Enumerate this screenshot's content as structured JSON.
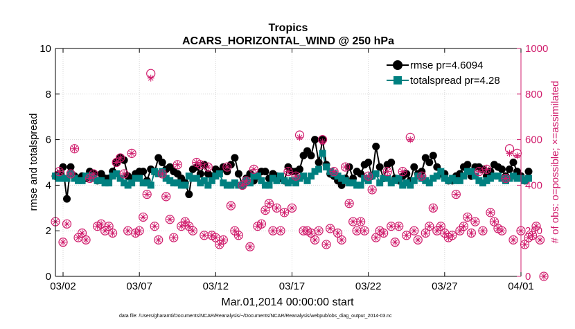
{
  "chart_data": {
    "type": "line",
    "title": "Tropics",
    "subtitle": "ACARS_HORIZONTAL_WIND @ 250 hPa",
    "xlabel": "Mar.01,2014 00:00:00 start",
    "ylabel_left": "rmse and totalspread",
    "ylabel_right": "# of obs: o=possible; ×=assimilated",
    "footnote": "data file: /Users/gharamti/Documents/NCAR/Reanalysis/~/Documents/NCAR/Reanalysis/webpub/obs_diag_output_2014-03.nc",
    "xlim": [
      "03/01 12:00",
      "04/01"
    ],
    "x_ticks": [
      "03/02",
      "03/07",
      "03/12",
      "03/17",
      "03/22",
      "03/27",
      "04/01"
    ],
    "ylim_left": [
      0,
      10
    ],
    "y_ticks_left": [
      "0",
      "2",
      "4",
      "6",
      "8",
      "10"
    ],
    "ylim_right": [
      0,
      1000
    ],
    "y_ticks_right": [
      "0",
      "200",
      "400",
      "600",
      "800",
      "1000"
    ],
    "grid": true,
    "legend_position": "top-right",
    "x_start": "2014-03-01",
    "x_step_days": 0.25,
    "series": [
      {
        "name": "rmse pr=4.6094",
        "axis": "left",
        "color": "#000000",
        "marker": "circle",
        "values": [
          4.4,
          4.5,
          4.8,
          3.4,
          4.8,
          4.4,
          4.3,
          4.4,
          4.3,
          4.6,
          4.5,
          4.2,
          4.5,
          4.3,
          4.3,
          4.6,
          5.0,
          5.2,
          5.1,
          4.4,
          4.3,
          4.5,
          4.6,
          4.6,
          4.2,
          4.7,
          4.6,
          5.2,
          5.0,
          4.7,
          4.8,
          4.6,
          4.5,
          4.3,
          4.1,
          3.6,
          4.7,
          4.8,
          4.5,
          4.9,
          4.5,
          4.4,
          4.7,
          4.6,
          4.8,
          4.6,
          4.9,
          5.2,
          4.5,
          4.0,
          4.3,
          4.5,
          4.2,
          4.4,
          4.6,
          4.6,
          4.3,
          4.5,
          4.4,
          4.3,
          4.2,
          4.8,
          4.6,
          4.6,
          4.7,
          5.3,
          5.5,
          5.3,
          6.0,
          5.0,
          6.0,
          4.9,
          4.5,
          4.4,
          4.2,
          4.0,
          4.3,
          4.8,
          4.3,
          4.6,
          4.5,
          4.9,
          5.0,
          4.4,
          5.7,
          4.8,
          4.3,
          4.9,
          5.0,
          4.3,
          4.2,
          4.4,
          4.5,
          4.2,
          4.8,
          4.5,
          4.6,
          5.2,
          5.0,
          5.3,
          4.8,
          4.5,
          4.5,
          4.2,
          4.2,
          4.4,
          4.5,
          4.8,
          4.9,
          4.4,
          4.8,
          4.8,
          4.7,
          4.4,
          4.6,
          4.9,
          4.8,
          4.7,
          4.4,
          4.7,
          5.0,
          4.6,
          4.4,
          4.2,
          4.6
        ]
      },
      {
        "name": "totalspread pr=4.28",
        "axis": "left",
        "color": "#008080",
        "marker": "square",
        "values": [
          4.4,
          4.3,
          4.3,
          4.3,
          4.5,
          4.3,
          4.2,
          4.2,
          4.4,
          4.4,
          4.3,
          4.2,
          4.2,
          4.1,
          4.1,
          4.4,
          4.5,
          4.3,
          4.1,
          4.0,
          4.1,
          4.3,
          4.3,
          4.1,
          4.1,
          4.0,
          4.6,
          4.5,
          4.6,
          4.3,
          4.2,
          4.1,
          4.1,
          4.0,
          4.0,
          4.4,
          4.3,
          4.3,
          4.1,
          4.2,
          4.0,
          4.2,
          4.4,
          4.5,
          4.1,
          4.0,
          4.0,
          4.1,
          4.0,
          4.0,
          4.2,
          4.1,
          4.4,
          4.4,
          4.2,
          4.0,
          4.0,
          4.3,
          4.2,
          4.4,
          4.2,
          4.1,
          4.2,
          4.1,
          4.3,
          4.4,
          4.2,
          4.4,
          4.6,
          4.7,
          5.4,
          4.8,
          4.6,
          4.5,
          4.4,
          4.3,
          4.2,
          4.1,
          4.1,
          4.0,
          4.0,
          4.3,
          4.2,
          4.4,
          4.5,
          4.1,
          4.3,
          4.3,
          4.1,
          4.2,
          4.3,
          4.0,
          4.1,
          4.0,
          4.2,
          4.4,
          4.3,
          4.2,
          4.1,
          4.3,
          4.4,
          4.6,
          4.3,
          4.2,
          4.3,
          4.2,
          4.2,
          4.4,
          4.6,
          4.6,
          4.4,
          4.2,
          4.1,
          4.2,
          4.3,
          4.4,
          4.4,
          4.3,
          4.2,
          4.3,
          4.4,
          4.3,
          4.3,
          4.2,
          4.3
        ]
      },
      {
        "name": "possible",
        "axis": "right",
        "color": "#d01c6c",
        "marker": "circle-open",
        "values": [
          240,
          460,
          150,
          230,
          450,
          560,
          170,
          190,
          160,
          430,
          450,
          220,
          230,
          200,
          220,
          190,
          500,
          520,
          450,
          200,
          540,
          190,
          200,
          260,
          360,
          890,
          220,
          160,
          450,
          350,
          250,
          170,
          490,
          220,
          240,
          220,
          200,
          500,
          490,
          180,
          480,
          180,
          170,
          140,
          160,
          480,
          310,
          200,
          180,
          400,
          420,
          130,
          470,
          220,
          230,
          290,
          320,
          200,
          300,
          200,
          280,
          460,
          300,
          440,
          620,
          200,
          200,
          190,
          160,
          200,
          600,
          140,
          210,
          460,
          190,
          160,
          480,
          320,
          240,
          200,
          240,
          200,
          440,
          380,
          170,
          200,
          190,
          460,
          220,
          150,
          220,
          460,
          180,
          610,
          200,
          160,
          440,
          190,
          220,
          300,
          200,
          220,
          190,
          170,
          180,
          360,
          200,
          220,
          260,
          190,
          240,
          460,
          200,
          470,
          280,
          240,
          210,
          200,
          430,
          560,
          160,
          540,
          200,
          140,
          170,
          180,
          220,
          160,
          0
        ]
      },
      {
        "name": "assimilated",
        "axis": "right",
        "color": "#d01c6c",
        "marker": "asterisk",
        "values": [
          240,
          460,
          150,
          230,
          450,
          560,
          170,
          190,
          160,
          430,
          450,
          220,
          230,
          200,
          220,
          190,
          500,
          520,
          450,
          200,
          540,
          190,
          200,
          260,
          360,
          870,
          220,
          160,
          450,
          350,
          250,
          170,
          490,
          220,
          240,
          220,
          200,
          500,
          490,
          180,
          480,
          180,
          170,
          140,
          160,
          480,
          310,
          200,
          180,
          400,
          420,
          130,
          470,
          220,
          230,
          290,
          320,
          200,
          300,
          200,
          280,
          460,
          300,
          440,
          610,
          200,
          200,
          190,
          160,
          200,
          590,
          140,
          210,
          460,
          190,
          160,
          480,
          320,
          240,
          200,
          240,
          200,
          440,
          380,
          170,
          200,
          190,
          460,
          220,
          150,
          220,
          460,
          180,
          600,
          200,
          160,
          440,
          190,
          220,
          300,
          200,
          220,
          190,
          170,
          180,
          360,
          200,
          220,
          260,
          190,
          240,
          460,
          200,
          470,
          280,
          240,
          210,
          200,
          430,
          540,
          160,
          530,
          200,
          140,
          170,
          180,
          220,
          160,
          0
        ]
      }
    ],
    "colors": {
      "left_axis": "#000000",
      "right_axis": "#d01c6c",
      "grid": "#d8d8d8"
    }
  }
}
